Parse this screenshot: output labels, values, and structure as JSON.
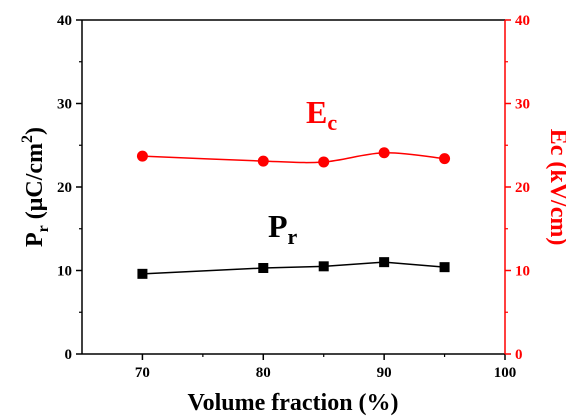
{
  "chart_data": {
    "type": "line",
    "x": [
      70,
      80,
      85,
      90,
      95
    ],
    "xlabel": "Volume fraction (%)",
    "xlim": [
      65,
      100
    ],
    "xticks": [
      70,
      80,
      90,
      100
    ],
    "ylabel_left": {
      "base": "P",
      "sub": "r",
      "rest": " (μC/cm",
      "sup": "2",
      "end": ")"
    },
    "ylabel_right": "Ec (kV/cm)",
    "ylim_left": [
      0,
      40
    ],
    "ylim_right": [
      0,
      40
    ],
    "yticks": [
      0,
      10,
      20,
      30,
      40
    ],
    "grid": false,
    "legend": "none",
    "series": [
      {
        "key": "pr",
        "axis": "left",
        "marker": "square",
        "color": "#000000",
        "values": [
          9.6,
          10.3,
          10.5,
          11.0,
          10.4
        ],
        "annotation": {
          "base": "P",
          "sub": "r"
        }
      },
      {
        "key": "ec",
        "axis": "right",
        "marker": "circle",
        "color": "#ff0000",
        "values": [
          23.7,
          23.1,
          23.0,
          24.1,
          23.4
        ],
        "annotation": {
          "base": "E",
          "sub": "c"
        }
      }
    ]
  }
}
